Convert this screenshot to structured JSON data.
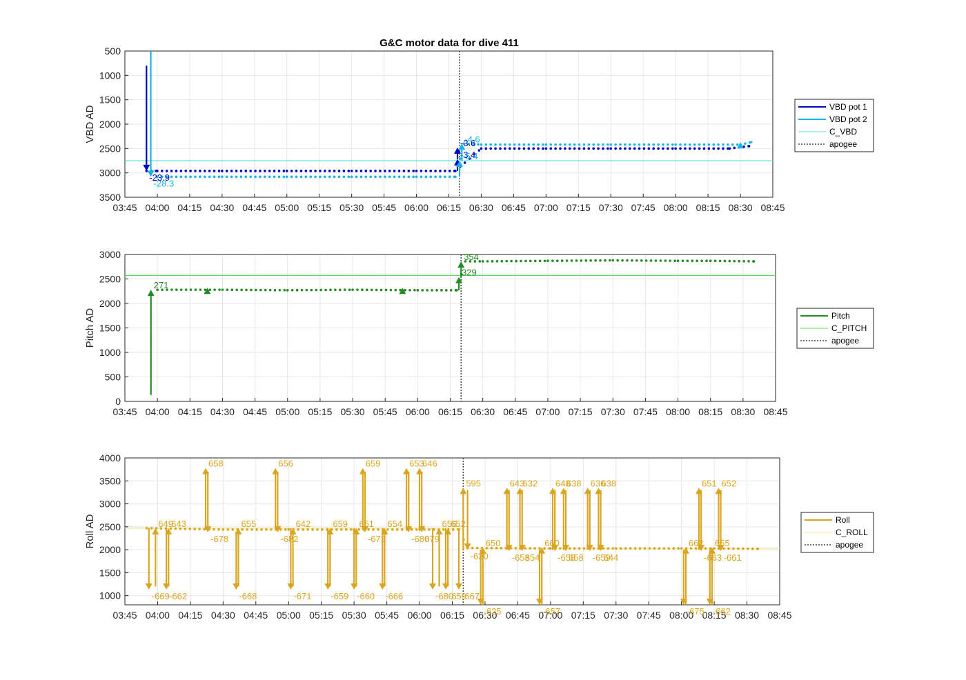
{
  "figure": {
    "title": "G&C motor data for dive 411"
  },
  "x_axis": {
    "ticks": [
      "03:45",
      "04:00",
      "04:15",
      "04:30",
      "04:45",
      "05:00",
      "05:15",
      "05:30",
      "05:45",
      "06:00",
      "06:15",
      "06:30",
      "06:45",
      "07:00",
      "07:15",
      "07:30",
      "07:45",
      "08:00",
      "08:15",
      "08:30",
      "08:45"
    ],
    "range": [
      "03:45",
      "08:45"
    ]
  },
  "apogee_time": "06:20",
  "chart_data": [
    {
      "type": "line",
      "title": "G&C motor data for dive 411",
      "ylabel": "VBD AD",
      "ylim": [
        500,
        3500
      ],
      "y_reversed": true,
      "yticks": [
        500,
        1000,
        1500,
        2000,
        2500,
        3000,
        3500
      ],
      "grid": true,
      "legend_position": "outside-right",
      "legend": [
        "VBD pot 1",
        "VBD pot 2",
        "C_VBD",
        "apogee"
      ],
      "colors": {
        "VBD pot 1": "#0000c8",
        "VBD pot 2": "#19b4e6",
        "C_VBD": "#40e0d0",
        "apogee": "#444444"
      },
      "reference_line": {
        "name": "C_VBD",
        "y": 2750
      },
      "series": [
        {
          "name": "VBD pot 1",
          "x": [
            "03:55",
            "04:00",
            "04:30",
            "05:00",
            "05:30",
            "06:00",
            "06:18",
            "06:30",
            "07:00",
            "07:30",
            "08:00",
            "08:25",
            "08:34"
          ],
          "values": [
            2960,
            2960,
            2960,
            2960,
            2960,
            2960,
            2960,
            2500,
            2500,
            2500,
            2500,
            2500,
            2450
          ]
        },
        {
          "name": "VBD pot 2",
          "x": [
            "03:57",
            "04:00",
            "04:30",
            "05:00",
            "05:30",
            "06:00",
            "06:18",
            "06:22",
            "06:30",
            "07:00",
            "07:30",
            "08:00",
            "08:30",
            "08:35"
          ],
          "values": [
            3080,
            3080,
            3080,
            3080,
            3080,
            3080,
            3080,
            2400,
            2420,
            2420,
            2420,
            2420,
            2420,
            2370
          ]
        }
      ],
      "arrows": [
        {
          "series": "VBD pot 1",
          "x": "03:55",
          "from": 800,
          "to": 2960,
          "label": "-23.9"
        },
        {
          "series": "VBD pot 2",
          "x": "03:57",
          "from": 500,
          "to": 3080,
          "label": "-28.3"
        },
        {
          "series": "VBD pot 1",
          "x": "06:19",
          "from": 2960,
          "to": 2720,
          "label": "-3.4"
        },
        {
          "series": "VBD pot 1",
          "x": "06:19",
          "from": 2720,
          "to": 2480,
          "label": "-3.6"
        },
        {
          "series": "VBD pot 2",
          "x": "06:20",
          "from": 3060,
          "to": 2750,
          "label": "-5.4"
        },
        {
          "series": "VBD pot 2",
          "x": "06:21",
          "from": 2750,
          "to": 2400,
          "label": "-4.6"
        },
        {
          "series": "VBD pot 2",
          "x": "08:30",
          "from": 2450,
          "to": 2370,
          "label": ""
        }
      ]
    },
    {
      "type": "line",
      "ylabel": "Pitch AD",
      "ylim": [
        0,
        3000
      ],
      "yticks": [
        0,
        500,
        1000,
        1500,
        2000,
        2500,
        3000
      ],
      "grid": true,
      "legend_position": "outside-right",
      "legend": [
        "Pitch",
        "C_PITCH",
        "apogee"
      ],
      "colors": {
        "Pitch": "#228b22",
        "C_PITCH": "#55dd55",
        "apogee": "#444444"
      },
      "reference_line": {
        "name": "C_PITCH",
        "y": 2570
      },
      "series": [
        {
          "name": "Pitch",
          "x": [
            "03:57",
            "04:00",
            "04:30",
            "05:00",
            "05:30",
            "06:00",
            "06:18",
            "06:22",
            "06:30",
            "07:00",
            "07:30",
            "08:00",
            "08:15",
            "08:35"
          ],
          "values": [
            2280,
            2280,
            2280,
            2270,
            2280,
            2270,
            2270,
            2860,
            2860,
            2870,
            2880,
            2870,
            2870,
            2860
          ]
        }
      ],
      "arrows": [
        {
          "x": "03:57",
          "from": 130,
          "to": 2280,
          "label": "271"
        },
        {
          "x": "04:23",
          "from": 2250,
          "to": 2320,
          "label": ""
        },
        {
          "x": "05:53",
          "from": 2250,
          "to": 2320,
          "label": ""
        },
        {
          "x": "06:19",
          "from": 2270,
          "to": 2540,
          "label": "329"
        },
        {
          "x": "06:20",
          "from": 2540,
          "to": 2860,
          "label": "354"
        }
      ]
    },
    {
      "type": "line",
      "ylabel": "Roll AD",
      "ylim": [
        800,
        4000
      ],
      "yticks": [
        1000,
        1500,
        2000,
        2500,
        3000,
        3500,
        4000
      ],
      "grid": true,
      "legend_position": "outside-right",
      "legend": [
        "Roll",
        "C_ROLL",
        "apogee"
      ],
      "colors": {
        "Roll": "#daa520",
        "C_ROLL": "#f0e68c",
        "apogee": "#444444"
      },
      "reference_line": {
        "name": "C_ROLL",
        "y_before": 2470,
        "y_after": 2030
      },
      "series": [
        {
          "name": "Roll",
          "x": [
            "03:55",
            "04:30",
            "05:00",
            "05:30",
            "06:00",
            "06:18",
            "06:22",
            "07:00",
            "07:30",
            "08:00",
            "08:15",
            "08:35"
          ],
          "values": [
            2470,
            2440,
            2440,
            2440,
            2440,
            2440,
            2040,
            2030,
            2030,
            2030,
            2030,
            2020
          ]
        }
      ],
      "arrows": [
        {
          "x": "03:56",
          "from": 2470,
          "to": 1130,
          "label": "-669"
        },
        {
          "x": "03:59",
          "from": 1200,
          "to": 2470,
          "label": "649"
        },
        {
          "x": "04:04",
          "from": 2470,
          "to": 1130,
          "label": "-662"
        },
        {
          "x": "04:05",
          "from": 1200,
          "to": 2470,
          "label": "643"
        },
        {
          "x": "04:22",
          "from": 2430,
          "to": 3780,
          "label": "658"
        },
        {
          "x": "04:23",
          "from": 3700,
          "to": 2380,
          "label": "-678"
        },
        {
          "x": "04:36",
          "from": 2400,
          "to": 1130,
          "label": "-668"
        },
        {
          "x": "04:37",
          "from": 1200,
          "to": 2470,
          "label": "655"
        },
        {
          "x": "04:54",
          "from": 2430,
          "to": 3780,
          "label": "656"
        },
        {
          "x": "04:55",
          "from": 3700,
          "to": 2380,
          "label": "-682"
        },
        {
          "x": "05:01",
          "from": 2470,
          "to": 1130,
          "label": "-671"
        },
        {
          "x": "05:02",
          "from": 1200,
          "to": 2470,
          "label": "642"
        },
        {
          "x": "05:18",
          "from": 2470,
          "to": 1130,
          "label": "-659"
        },
        {
          "x": "05:19",
          "from": 1200,
          "to": 2470,
          "label": "659"
        },
        {
          "x": "05:30",
          "from": 2470,
          "to": 1130,
          "label": "-660"
        },
        {
          "x": "05:31",
          "from": 1200,
          "to": 2470,
          "label": "651"
        },
        {
          "x": "05:34",
          "from": 2430,
          "to": 3780,
          "label": "659"
        },
        {
          "x": "05:35",
          "from": 3700,
          "to": 2380,
          "label": "-673"
        },
        {
          "x": "05:43",
          "from": 2470,
          "to": 1130,
          "label": "-666"
        },
        {
          "x": "05:44",
          "from": 1200,
          "to": 2470,
          "label": "654"
        },
        {
          "x": "05:54",
          "from": 2430,
          "to": 3780,
          "label": "653"
        },
        {
          "x": "05:55",
          "from": 3700,
          "to": 2380,
          "label": "-680"
        },
        {
          "x": "06:00",
          "from": 2430,
          "to": 3780,
          "label": "646"
        },
        {
          "x": "06:01",
          "from": 3700,
          "to": 2380,
          "label": "679"
        },
        {
          "x": "06:06",
          "from": 2470,
          "to": 1130,
          "label": "-680"
        },
        {
          "x": "06:09",
          "from": 1200,
          "to": 2470,
          "label": "656"
        },
        {
          "x": "06:12",
          "from": 2470,
          "to": 1130,
          "label": "-659"
        },
        {
          "x": "06:13",
          "from": 1200,
          "to": 2470,
          "label": "652"
        },
        {
          "x": "06:18",
          "from": 2470,
          "to": 1130,
          "label": "-667"
        },
        {
          "x": "06:20",
          "from": 2000,
          "to": 3350,
          "label": "595"
        },
        {
          "x": "06:22",
          "from": 3300,
          "to": 2000,
          "label": "-620"
        },
        {
          "x": "06:28",
          "from": 2000,
          "to": 800,
          "label": "-625"
        },
        {
          "x": "06:29",
          "from": 800,
          "to": 2050,
          "label": "650"
        },
        {
          "x": "06:40",
          "from": 2000,
          "to": 3350,
          "label": "643"
        },
        {
          "x": "06:41",
          "from": 3300,
          "to": 1970,
          "label": "-653"
        },
        {
          "x": "06:46",
          "from": 2000,
          "to": 3350,
          "label": "632"
        },
        {
          "x": "06:47",
          "from": 3300,
          "to": 1970,
          "label": "654"
        },
        {
          "x": "06:55",
          "from": 2000,
          "to": 800,
          "label": "-657"
        },
        {
          "x": "06:56",
          "from": 800,
          "to": 2050,
          "label": "660"
        },
        {
          "x": "07:01",
          "from": 2000,
          "to": 3350,
          "label": "648"
        },
        {
          "x": "07:02",
          "from": 3300,
          "to": 1970,
          "label": "-658"
        },
        {
          "x": "07:06",
          "from": 2000,
          "to": 3350,
          "label": "638"
        },
        {
          "x": "07:07",
          "from": 3300,
          "to": 1970,
          "label": "658"
        },
        {
          "x": "07:17",
          "from": 2000,
          "to": 3350,
          "label": "636"
        },
        {
          "x": "07:18",
          "from": 3300,
          "to": 1970,
          "label": "-659"
        },
        {
          "x": "07:22",
          "from": 2000,
          "to": 3350,
          "label": "638"
        },
        {
          "x": "07:23",
          "from": 3300,
          "to": 1970,
          "label": "644"
        },
        {
          "x": "08:01",
          "from": 2000,
          "to": 800,
          "label": "-675"
        },
        {
          "x": "08:02",
          "from": 800,
          "to": 2050,
          "label": "662"
        },
        {
          "x": "08:08",
          "from": 2000,
          "to": 3350,
          "label": "651"
        },
        {
          "x": "08:09",
          "from": 3300,
          "to": 1970,
          "label": "-663"
        },
        {
          "x": "08:13",
          "from": 2000,
          "to": 800,
          "label": "-662"
        },
        {
          "x": "08:14",
          "from": 800,
          "to": 2050,
          "label": "655"
        },
        {
          "x": "08:17",
          "from": 2000,
          "to": 3350,
          "label": "652"
        },
        {
          "x": "08:18",
          "from": 3300,
          "to": 1970,
          "label": "-661"
        }
      ]
    }
  ]
}
